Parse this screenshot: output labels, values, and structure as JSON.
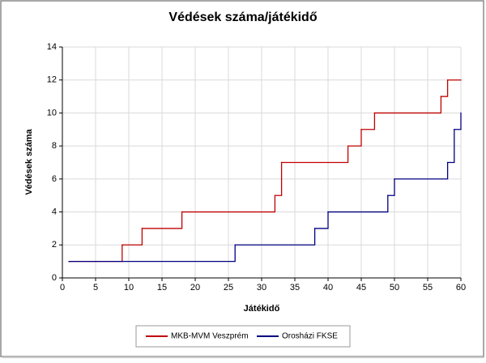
{
  "chart_data": {
    "type": "line",
    "step": "post",
    "title": "Védések száma/játékidő",
    "x_label": "Játékidő",
    "y_label": "Védések száma",
    "xlim": [
      0,
      60
    ],
    "xticks": [
      0,
      5,
      10,
      15,
      20,
      25,
      30,
      35,
      40,
      45,
      50,
      55,
      60
    ],
    "ylim": [
      0,
      14
    ],
    "yticks": [
      0,
      2,
      4,
      6,
      8,
      10,
      12,
      14
    ],
    "grid": true,
    "legend": "bottom",
    "series": [
      {
        "name": "MKB-MVM Veszprém",
        "color": "#c00000",
        "x": [
          1,
          9,
          12,
          18,
          32,
          33,
          43,
          45,
          47,
          57,
          58,
          60
        ],
        "values": [
          1,
          2,
          3,
          4,
          5,
          7,
          8,
          9,
          10,
          11,
          12,
          12
        ]
      },
      {
        "name": "Orosházi FKSE",
        "color": "#000080",
        "x": [
          1,
          26,
          38,
          40,
          49,
          50,
          58,
          59,
          60
        ],
        "values": [
          1,
          2,
          3,
          4,
          5,
          6,
          7,
          9,
          10
        ]
      }
    ]
  }
}
